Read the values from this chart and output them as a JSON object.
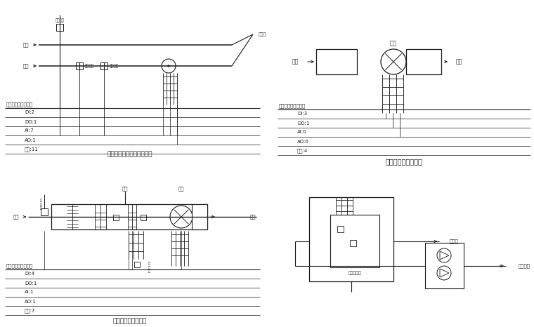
{
  "bg_color": "#ffffff",
  "line_color": "#1a1a1a",
  "text_color": "#1a1a1a",
  "title_tl": "建筑楼入口冷水监控系统图",
  "title_tr": "送排风机监控系统图",
  "title_bl": "空调机组控制系统图",
  "label_jinfeng": "进风",
  "label_chufeng": "出风",
  "label_huifeng": "回风",
  "label_songfeng": "送风",
  "label_xinfeng": "新风",
  "label_fengji": "风机",
  "label_huishui": "回水",
  "label_gongshu": "供水",
  "label_gaozukang": "高阻抗",
  "label_lengshui_wendu": "冷水温度",
  "label_lengshui_liuliang": "冷水流量",
  "label_table_header": "输入输出控制点类型",
  "table_tl": [
    [
      "DI:2",
      "DO:1",
      "AI:7",
      "AO:1",
      "合计:11"
    ]
  ],
  "table_tr": [
    [
      "DI:3",
      "DO:1",
      "AI:0",
      "AO:0",
      "合计:4"
    ]
  ],
  "table_bl": [
    [
      "DI:4",
      "DO:1",
      "AI:1",
      "AO:1",
      "合计:7"
    ]
  ],
  "label_shenghuo": "生活用水箱",
  "label_mouyonghu": "某用户",
  "label_chengshi": "城市供水"
}
